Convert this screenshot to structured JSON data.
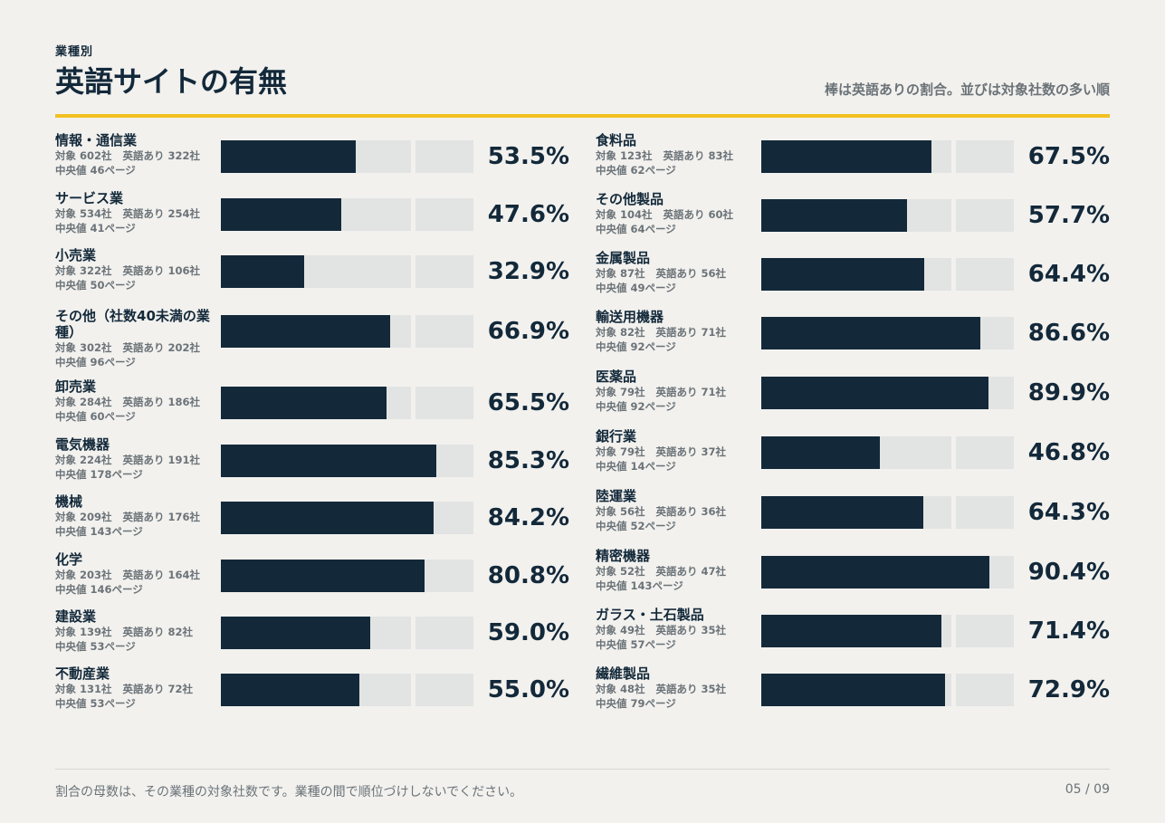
{
  "kicker": "業種別",
  "title": "英語サイトの有無",
  "subtitle": "棒は英語ありの割合。並びは対象社数の多い順",
  "footer": {
    "note": "割合の母数は、その業種の対象社数です。業種の間で順位づけしないでください。",
    "page": "05 / 09"
  },
  "colors": {
    "bar_fill": "#13293a",
    "bar_track": "#e2e3e3",
    "accent_rule": "#f2c020"
  },
  "chart_data": {
    "type": "bar",
    "orientation": "horizontal",
    "xlim": [
      0,
      100
    ],
    "unit": "%",
    "columns": [
      [
        {
          "name": "情報・通信業",
          "targets": "対象 602社",
          "english": "英語あり 322社",
          "median": "中央値 46ページ",
          "value": 53.5,
          "label": "53.5%"
        },
        {
          "name": "サービス業",
          "targets": "対象 534社",
          "english": "英語あり 254社",
          "median": "中央値 41ページ",
          "value": 47.6,
          "label": "47.6%"
        },
        {
          "name": "小売業",
          "targets": "対象 322社",
          "english": "英語あり 106社",
          "median": "中央値 50ページ",
          "value": 32.9,
          "label": "32.9%"
        },
        {
          "name": "その他（社数40未満の業種）",
          "targets": "対象 302社",
          "english": "英語あり 202社",
          "median": "中央値 96ページ",
          "value": 66.9,
          "label": "66.9%"
        },
        {
          "name": "卸売業",
          "targets": "対象 284社",
          "english": "英語あり 186社",
          "median": "中央値 60ページ",
          "value": 65.5,
          "label": "65.5%"
        },
        {
          "name": "電気機器",
          "targets": "対象 224社",
          "english": "英語あり 191社",
          "median": "中央値 178ページ",
          "value": 85.3,
          "label": "85.3%"
        },
        {
          "name": "機械",
          "targets": "対象 209社",
          "english": "英語あり 176社",
          "median": "中央値 143ページ",
          "value": 84.2,
          "label": "84.2%"
        },
        {
          "name": "化学",
          "targets": "対象 203社",
          "english": "英語あり 164社",
          "median": "中央値 146ページ",
          "value": 80.8,
          "label": "80.8%"
        },
        {
          "name": "建設業",
          "targets": "対象 139社",
          "english": "英語あり 82社",
          "median": "中央値 53ページ",
          "value": 59.0,
          "label": "59.0%"
        },
        {
          "name": "不動産業",
          "targets": "対象 131社",
          "english": "英語あり 72社",
          "median": "中央値 53ページ",
          "value": 55.0,
          "label": "55.0%"
        }
      ],
      [
        {
          "name": "食料品",
          "targets": "対象 123社",
          "english": "英語あり 83社",
          "median": "中央値 62ページ",
          "value": 67.5,
          "label": "67.5%"
        },
        {
          "name": "その他製品",
          "targets": "対象 104社",
          "english": "英語あり 60社",
          "median": "中央値 64ページ",
          "value": 57.7,
          "label": "57.7%"
        },
        {
          "name": "金属製品",
          "targets": "対象 87社",
          "english": "英語あり 56社",
          "median": "中央値 49ページ",
          "value": 64.4,
          "label": "64.4%"
        },
        {
          "name": "輸送用機器",
          "targets": "対象 82社",
          "english": "英語あり 71社",
          "median": "中央値 92ページ",
          "value": 86.6,
          "label": "86.6%"
        },
        {
          "name": "医薬品",
          "targets": "対象 79社",
          "english": "英語あり 71社",
          "median": "中央値 92ページ",
          "value": 89.9,
          "label": "89.9%"
        },
        {
          "name": "銀行業",
          "targets": "対象 79社",
          "english": "英語あり 37社",
          "median": "中央値 14ページ",
          "value": 46.8,
          "label": "46.8%"
        },
        {
          "name": "陸運業",
          "targets": "対象 56社",
          "english": "英語あり 36社",
          "median": "中央値 52ページ",
          "value": 64.3,
          "label": "64.3%"
        },
        {
          "name": "精密機器",
          "targets": "対象 52社",
          "english": "英語あり 47社",
          "median": "中央値 143ページ",
          "value": 90.4,
          "label": "90.4%"
        },
        {
          "name": "ガラス・土石製品",
          "targets": "対象 49社",
          "english": "英語あり 35社",
          "median": "中央値 57ページ",
          "value": 71.4,
          "label": "71.4%"
        },
        {
          "name": "繊維製品",
          "targets": "対象 48社",
          "english": "英語あり 35社",
          "median": "中央値 79ページ",
          "value": 72.9,
          "label": "72.9%"
        }
      ]
    ]
  }
}
